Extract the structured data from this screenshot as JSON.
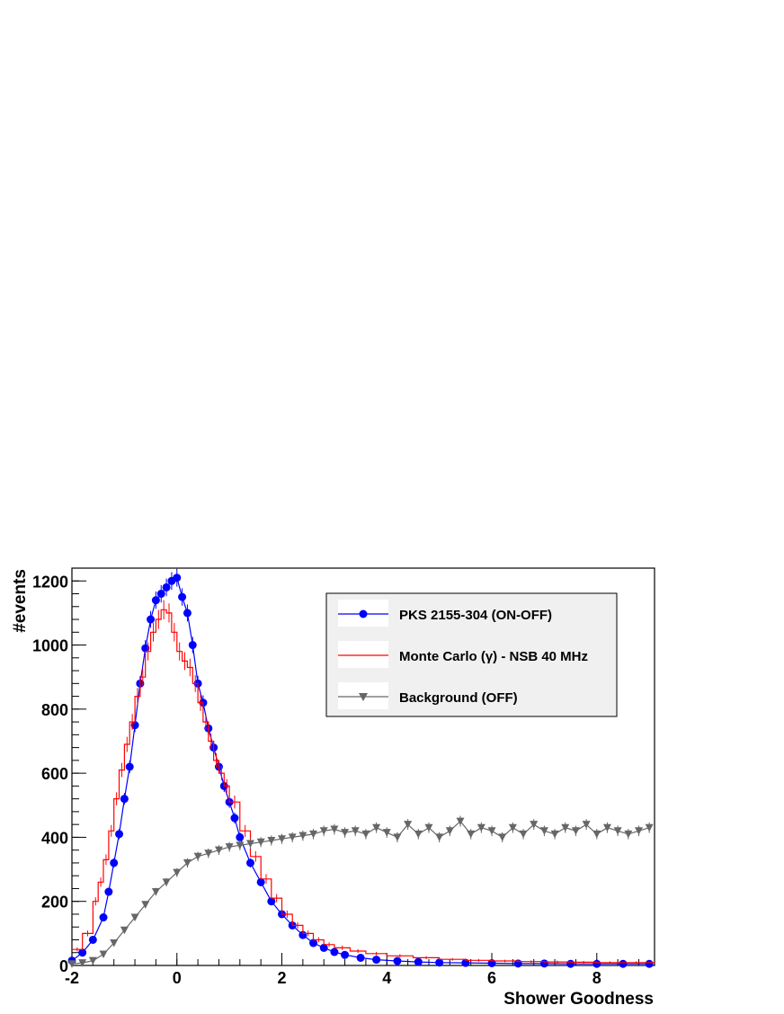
{
  "chart_data": {
    "type": "line",
    "xlabel": "Shower Goodness",
    "ylabel": "#events",
    "xlim": [
      -2,
      9.1
    ],
    "ylim": [
      0,
      1240
    ],
    "xticks": [
      -2,
      0,
      2,
      4,
      6,
      8
    ],
    "yticks": [
      0,
      200,
      400,
      600,
      800,
      1000,
      1200
    ],
    "grid": false,
    "legend_position": "top-right",
    "series": [
      {
        "name": "PKS 2155-304 (ON-OFF)",
        "color": "#0000ff",
        "marker": "circle",
        "x": [
          -2.0,
          -1.8,
          -1.6,
          -1.4,
          -1.3,
          -1.2,
          -1.1,
          -1.0,
          -0.9,
          -0.8,
          -0.7,
          -0.6,
          -0.5,
          -0.4,
          -0.3,
          -0.2,
          -0.1,
          0.0,
          0.1,
          0.2,
          0.3,
          0.4,
          0.5,
          0.6,
          0.7,
          0.8,
          0.9,
          1.0,
          1.1,
          1.2,
          1.4,
          1.6,
          1.8,
          2.0,
          2.2,
          2.4,
          2.6,
          2.8,
          3.0,
          3.2,
          3.5,
          3.8,
          4.2,
          4.6,
          5.0,
          5.5,
          6.0,
          6.5,
          7.0,
          7.5,
          8.0,
          8.5,
          9.0
        ],
        "y": [
          15,
          40,
          80,
          150,
          230,
          320,
          410,
          520,
          620,
          750,
          880,
          990,
          1080,
          1140,
          1160,
          1180,
          1200,
          1210,
          1150,
          1100,
          1000,
          880,
          820,
          740,
          680,
          620,
          560,
          510,
          460,
          400,
          320,
          260,
          200,
          160,
          125,
          95,
          70,
          55,
          42,
          33,
          24,
          18,
          14,
          11,
          9,
          8,
          7,
          6,
          6,
          5,
          5,
          5,
          5
        ]
      },
      {
        "name": "Monte Carlo (γ) - NSB 40 MHz",
        "color": "#ff0000",
        "marker": "none",
        "x": [
          -2.0,
          -1.8,
          -1.6,
          -1.5,
          -1.4,
          -1.3,
          -1.2,
          -1.1,
          -1.0,
          -0.9,
          -0.8,
          -0.7,
          -0.6,
          -0.5,
          -0.4,
          -0.3,
          -0.2,
          -0.1,
          0.0,
          0.1,
          0.2,
          0.3,
          0.4,
          0.5,
          0.6,
          0.7,
          0.8,
          0.9,
          1.0,
          1.2,
          1.4,
          1.6,
          1.8,
          2.0,
          2.2,
          2.4,
          2.6,
          2.8,
          3.0,
          3.3,
          3.6,
          4.0,
          4.5,
          5.0,
          5.5,
          6.0,
          6.5,
          7.0,
          7.5,
          8.0,
          8.5,
          9.0
        ],
        "y": [
          50,
          100,
          200,
          260,
          330,
          420,
          520,
          610,
          690,
          760,
          840,
          900,
          980,
          1040,
          1080,
          1110,
          1100,
          1040,
          980,
          950,
          930,
          880,
          820,
          760,
          700,
          640,
          600,
          560,
          510,
          420,
          340,
          270,
          210,
          160,
          125,
          100,
          80,
          65,
          55,
          45,
          37,
          30,
          24,
          19,
          16,
          14,
          12,
          11,
          10,
          9,
          9,
          9
        ]
      },
      {
        "name": "Background (OFF)",
        "color": "#666666",
        "marker": "triangle-down",
        "x": [
          -2.0,
          -1.8,
          -1.6,
          -1.4,
          -1.2,
          -1.0,
          -0.8,
          -0.6,
          -0.4,
          -0.2,
          0.0,
          0.2,
          0.4,
          0.6,
          0.8,
          1.0,
          1.2,
          1.4,
          1.6,
          1.8,
          2.0,
          2.2,
          2.4,
          2.6,
          2.8,
          3.0,
          3.2,
          3.4,
          3.6,
          3.8,
          4.0,
          4.2,
          4.4,
          4.6,
          4.8,
          5.0,
          5.2,
          5.4,
          5.6,
          5.8,
          6.0,
          6.2,
          6.4,
          6.6,
          6.8,
          7.0,
          7.2,
          7.4,
          7.6,
          7.8,
          8.0,
          8.2,
          8.4,
          8.6,
          8.8,
          9.0
        ],
        "y": [
          5,
          8,
          15,
          35,
          70,
          110,
          150,
          190,
          230,
          260,
          290,
          320,
          340,
          350,
          360,
          370,
          375,
          380,
          385,
          390,
          395,
          400,
          405,
          410,
          420,
          425,
          415,
          420,
          410,
          430,
          415,
          400,
          440,
          410,
          430,
          400,
          420,
          450,
          410,
          430,
          420,
          400,
          430,
          410,
          440,
          420,
          410,
          430,
          420,
          440,
          410,
          430,
          420,
          410,
          420,
          430
        ]
      }
    ]
  }
}
